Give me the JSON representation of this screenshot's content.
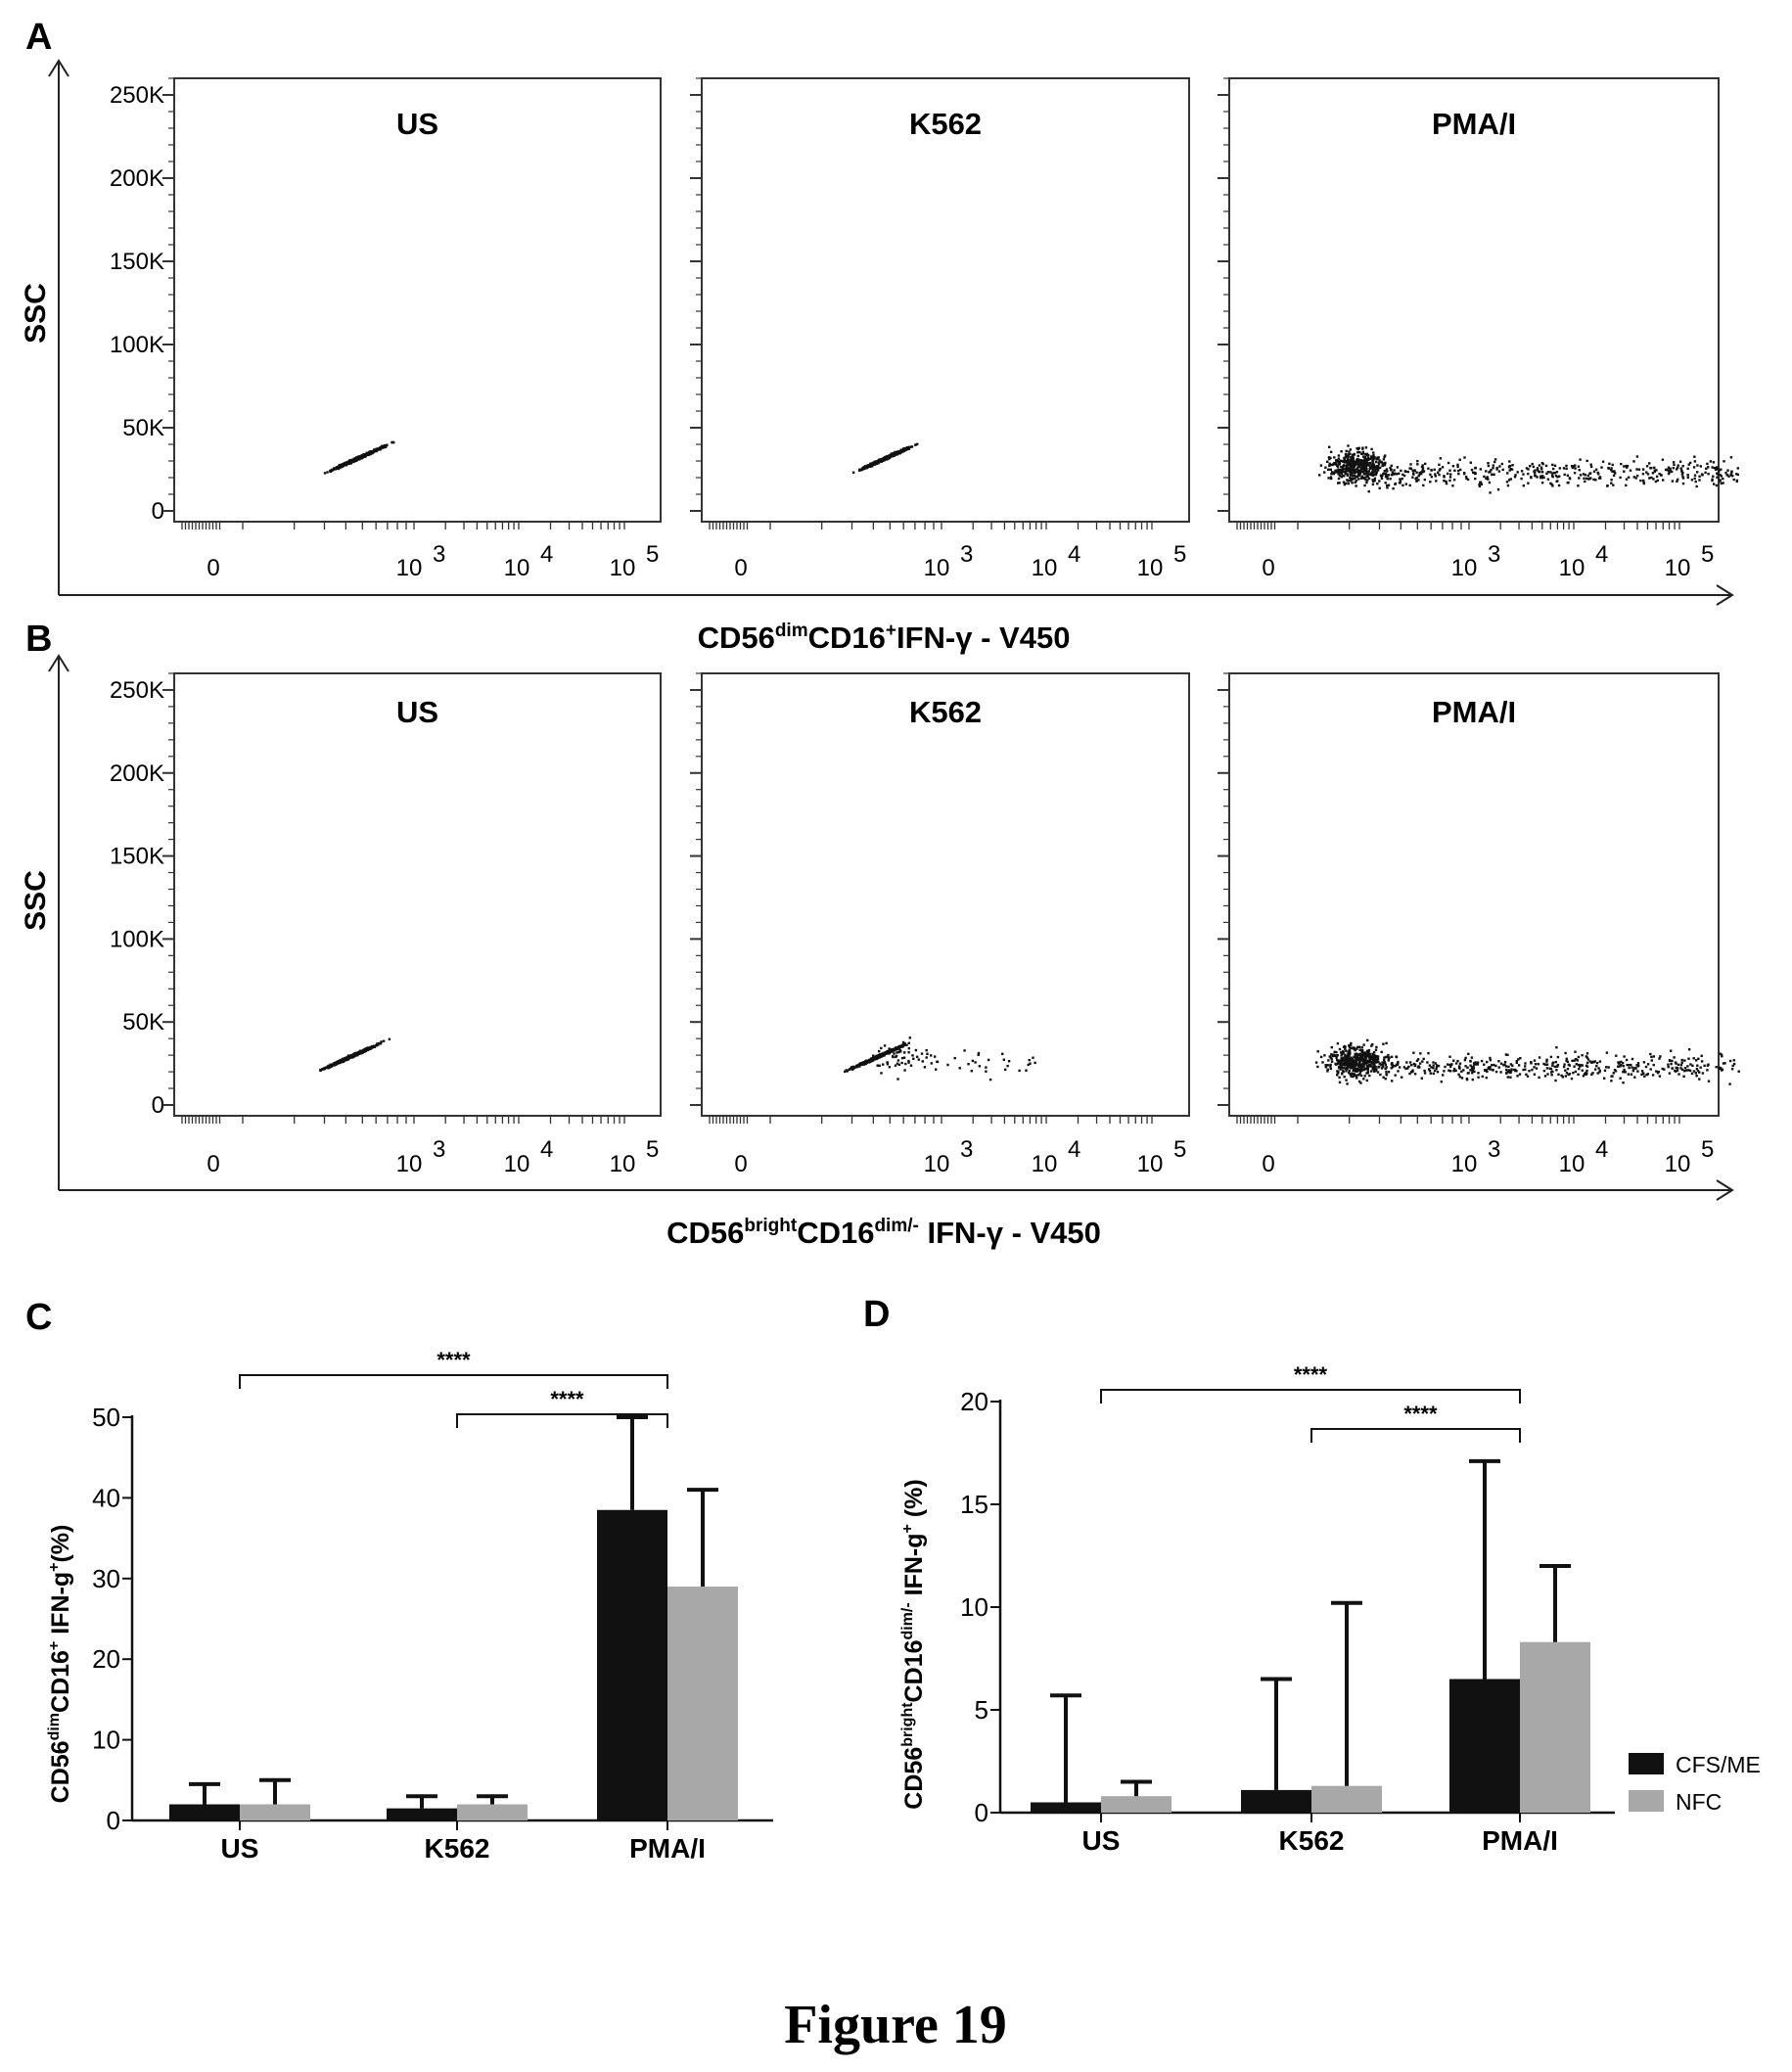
{
  "figure_title": "Figure 19",
  "panel_labels": {
    "A": "A",
    "B": "B",
    "C": "C",
    "D": "D"
  },
  "flow": {
    "ylabel": "SSC",
    "yticks": [
      "250K",
      "200K",
      "150K",
      "100K",
      "50K",
      "0"
    ],
    "xticks": [
      "0",
      "10",
      "10",
      "10"
    ],
    "xtick_exponents": [
      "3",
      "4",
      "5"
    ],
    "xlabel_A": {
      "a": "CD56",
      "a_sup": "dim",
      "b": "CD16",
      "b_sup": "+",
      "c": "IFN-γ - V450"
    },
    "xlabel_B": {
      "a": "CD56",
      "a_sup": "bright",
      "b": "CD16",
      "b_sup": "dim/-",
      "c": " IFN-γ - V450"
    },
    "titles": [
      "US",
      "K562",
      "PMA/I"
    ]
  },
  "bars": {
    "categories": [
      "US",
      "K562",
      "PMA/I"
    ],
    "legend": [
      "CFS/ME",
      "NFC"
    ],
    "colors": {
      "CFS/ME": "#111111",
      "NFC": "#a8a8a8"
    },
    "sig": "****",
    "C_ylabel": {
      "a": "CD56",
      "a_sup": "dim",
      "b": "CD16",
      "b_sup": "+",
      "c": " IFN-g",
      "c_sup": "+",
      "d": "(%)"
    },
    "D_ylabel": {
      "a": "CD56",
      "a_sup": "bright",
      "b": "CD16",
      "b_sup": "dim/-",
      "c": " IFN-g",
      "c_sup": "+",
      "d": " (%)"
    }
  },
  "chart_data": [
    {
      "type": "scatter",
      "panel": "A",
      "subplots": [
        {
          "title": "US",
          "cluster_x": [
            1.3,
            2.05
          ],
          "cluster_y": [
            15000,
            50000
          ]
        },
        {
          "title": "K562",
          "cluster_x": [
            1.3,
            2.05
          ],
          "cluster_y": [
            15000,
            50000
          ]
        },
        {
          "title": "PMA/I",
          "cluster_x": [
            0.5,
            5.2
          ],
          "cluster_y": [
            0,
            55000
          ]
        }
      ],
      "ylabel": "SSC",
      "ylim": [
        0,
        260000
      ]
    },
    {
      "type": "scatter",
      "panel": "B",
      "subplots": [
        {
          "title": "US",
          "cluster_x": [
            1.2,
            2.1
          ],
          "cluster_y": [
            10000,
            50000
          ]
        },
        {
          "title": "K562",
          "cluster_x": [
            1.2,
            3.4
          ],
          "cluster_y": [
            10000,
            50000
          ]
        },
        {
          "title": "PMA/I",
          "cluster_x": [
            0.5,
            5.2
          ],
          "cluster_y": [
            0,
            55000
          ]
        }
      ],
      "ylabel": "SSC",
      "ylim": [
        0,
        260000
      ]
    },
    {
      "type": "bar",
      "panel": "C",
      "categories": [
        "US",
        "K562",
        "PMA/I"
      ],
      "series": [
        {
          "name": "CFS/ME",
          "values": [
            2,
            1.5,
            38.5
          ],
          "error": [
            2.5,
            1.5,
            11.5
          ]
        },
        {
          "name": "NFC",
          "values": [
            2,
            2,
            29
          ],
          "error": [
            3,
            1,
            12
          ]
        }
      ],
      "yticks": [
        0,
        10,
        20,
        30,
        40,
        50
      ],
      "ylim": [
        0,
        50
      ],
      "significance": [
        {
          "from": "US",
          "to": "PMA/I",
          "label": "****"
        },
        {
          "from": "K562",
          "to": "PMA/I",
          "label": "****"
        }
      ]
    },
    {
      "type": "bar",
      "panel": "D",
      "categories": [
        "US",
        "K562",
        "PMA/I"
      ],
      "series": [
        {
          "name": "CFS/ME",
          "values": [
            0.5,
            1.1,
            6.5
          ],
          "error": [
            5.2,
            5.4,
            10.6
          ]
        },
        {
          "name": "NFC",
          "values": [
            0.8,
            1.3,
            8.3
          ],
          "error": [
            0.7,
            8.9,
            3.7
          ]
        }
      ],
      "yticks": [
        0,
        5,
        10,
        15,
        20
      ],
      "ylim": [
        0,
        20
      ],
      "significance": [
        {
          "from": "US",
          "to": "PMA/I",
          "label": "****"
        },
        {
          "from": "K562",
          "to": "PMA/I",
          "label": "****"
        }
      ]
    }
  ]
}
